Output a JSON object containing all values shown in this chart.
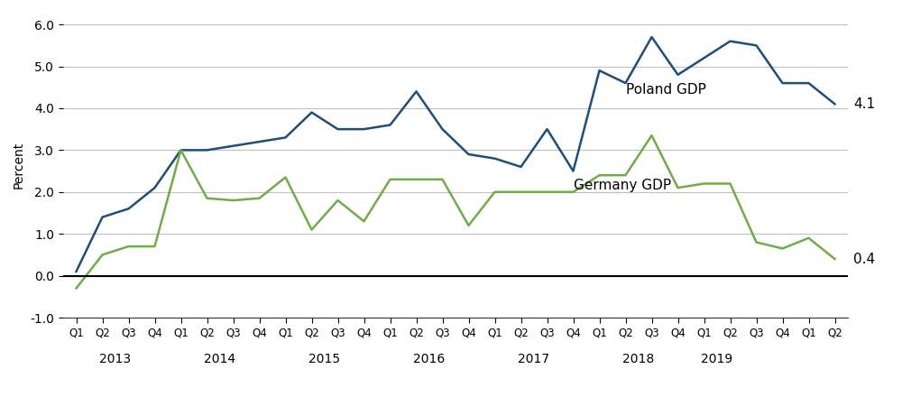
{
  "ylabel": "Percent",
  "poland_gdp": [
    0.1,
    1.4,
    1.6,
    2.1,
    3.0,
    3.0,
    3.1,
    3.2,
    3.3,
    3.9,
    3.5,
    3.5,
    3.6,
    4.4,
    3.5,
    2.9,
    2.8,
    2.6,
    3.5,
    2.5,
    4.9,
    4.6,
    5.7,
    4.8,
    5.2,
    5.6,
    5.5,
    4.6,
    4.6,
    4.1
  ],
  "germany_gdp": [
    -0.3,
    0.5,
    0.7,
    0.7,
    3.0,
    1.85,
    1.8,
    1.85,
    2.35,
    1.1,
    1.8,
    1.3,
    2.3,
    2.3,
    2.3,
    1.2,
    2.0,
    2.0,
    2.0,
    2.0,
    2.4,
    2.4,
    3.35,
    2.1,
    2.2,
    2.2,
    0.8,
    0.65,
    0.9,
    0.4
  ],
  "poland_color": "#1f4e79",
  "germany_color": "#70ad47",
  "zero_line_color": "#000000",
  "grid_color": "#c0c0c0",
  "background_color": "#ffffff",
  "ylim": [
    -1.0,
    6.3
  ],
  "yticks": [
    -1.0,
    0.0,
    1.0,
    2.0,
    3.0,
    4.0,
    5.0,
    6.0
  ],
  "ytick_labels": [
    "-1.0",
    "0.0",
    "1.0",
    "2.0",
    "3.0",
    "4.0",
    "5.0",
    "6.0"
  ],
  "poland_label": "Poland GDP",
  "germany_label": "Germany GDP",
  "poland_end_label": "4.1",
  "germany_end_label": "0.4",
  "quarter_labels": [
    "Q1",
    "Q2",
    "Q3",
    "Q4",
    "Q1",
    "Q2",
    "Q3",
    "Q4",
    "Q1",
    "Q2",
    "Q3",
    "Q4",
    "Q1",
    "Q2",
    "Q3",
    "Q4",
    "Q1",
    "Q2",
    "Q3",
    "Q4",
    "Q1",
    "Q2",
    "Q3",
    "Q4",
    "Q1",
    "Q2",
    "Q3",
    "Q4",
    "Q1",
    "Q2"
  ],
  "year_centers": [
    1.5,
    5.5,
    9.5,
    13.5,
    17.5,
    21.5,
    24.5
  ],
  "year_labels_txt": [
    "2013",
    "2014",
    "2015",
    "2016",
    "2017",
    "2018",
    "2019"
  ],
  "line_width": 1.8,
  "font_size_axis": 10,
  "font_size_label": 11
}
